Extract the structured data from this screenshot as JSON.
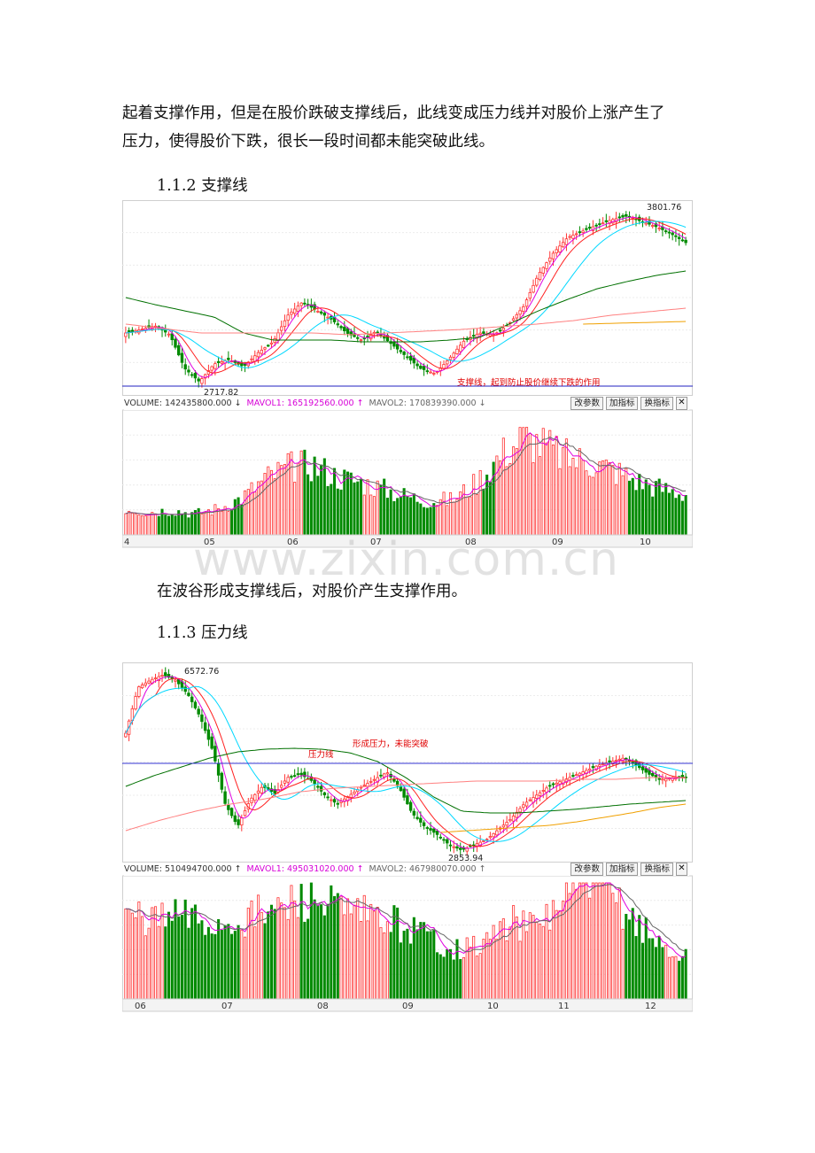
{
  "text": {
    "para1_line1": "起着支撑作用，但是在股价跌破支撑线后，此线变成压力线并对股价上涨产生了",
    "para1_line2": "压力，使得股价下跌，很长一段时间都未能突破此线。",
    "heading1": "1.1.2 支撑线",
    "para2": "在波谷形成支撑线后，对股价产生支撑作用。",
    "heading2": "1.1.3 压力线",
    "watermark": "www.zixin.com.cn"
  },
  "chart1": {
    "high_label": "3801.76",
    "low_label": "2717.82",
    "annotation": "支撑线，起到防止股价继续下跌的作用",
    "volume_label": "VOLUME: 142435800.000",
    "mavol1_label": "MAVOL1: 165192560.000",
    "mavol2_label": "MAVOL2: 170839390.000",
    "buttons": [
      "改参数",
      "加指标",
      "换指标"
    ],
    "months": [
      "4",
      "05",
      "06",
      "07",
      "08",
      "09",
      "10"
    ]
  },
  "chart2": {
    "high_label": "6572.76",
    "low_label": "2853.94",
    "annotation_line": "压力线",
    "annotation_break": "形成压力，未能突破",
    "volume_label": "VOLUME: 510494700.000",
    "mavol1_label": "MAVOL1: 495031020.000",
    "mavol2_label": "MAVOL2: 467980070.000",
    "buttons": [
      "改参数",
      "加指标",
      "换指标"
    ],
    "months": [
      "06",
      "07",
      "08",
      "09",
      "10",
      "11",
      "12"
    ]
  },
  "colors": {
    "up": "#ff3333",
    "down": "#008a00",
    "ma_magenta": "#e000e0",
    "ma_red": "#ff2020",
    "ma_cyan": "#00d8ff",
    "ma_green": "#007000",
    "ma_pink": "#ff8080",
    "ma_orange": "#f0a000",
    "support_line": "#2020c0",
    "resist_line": "#3030d0"
  }
}
